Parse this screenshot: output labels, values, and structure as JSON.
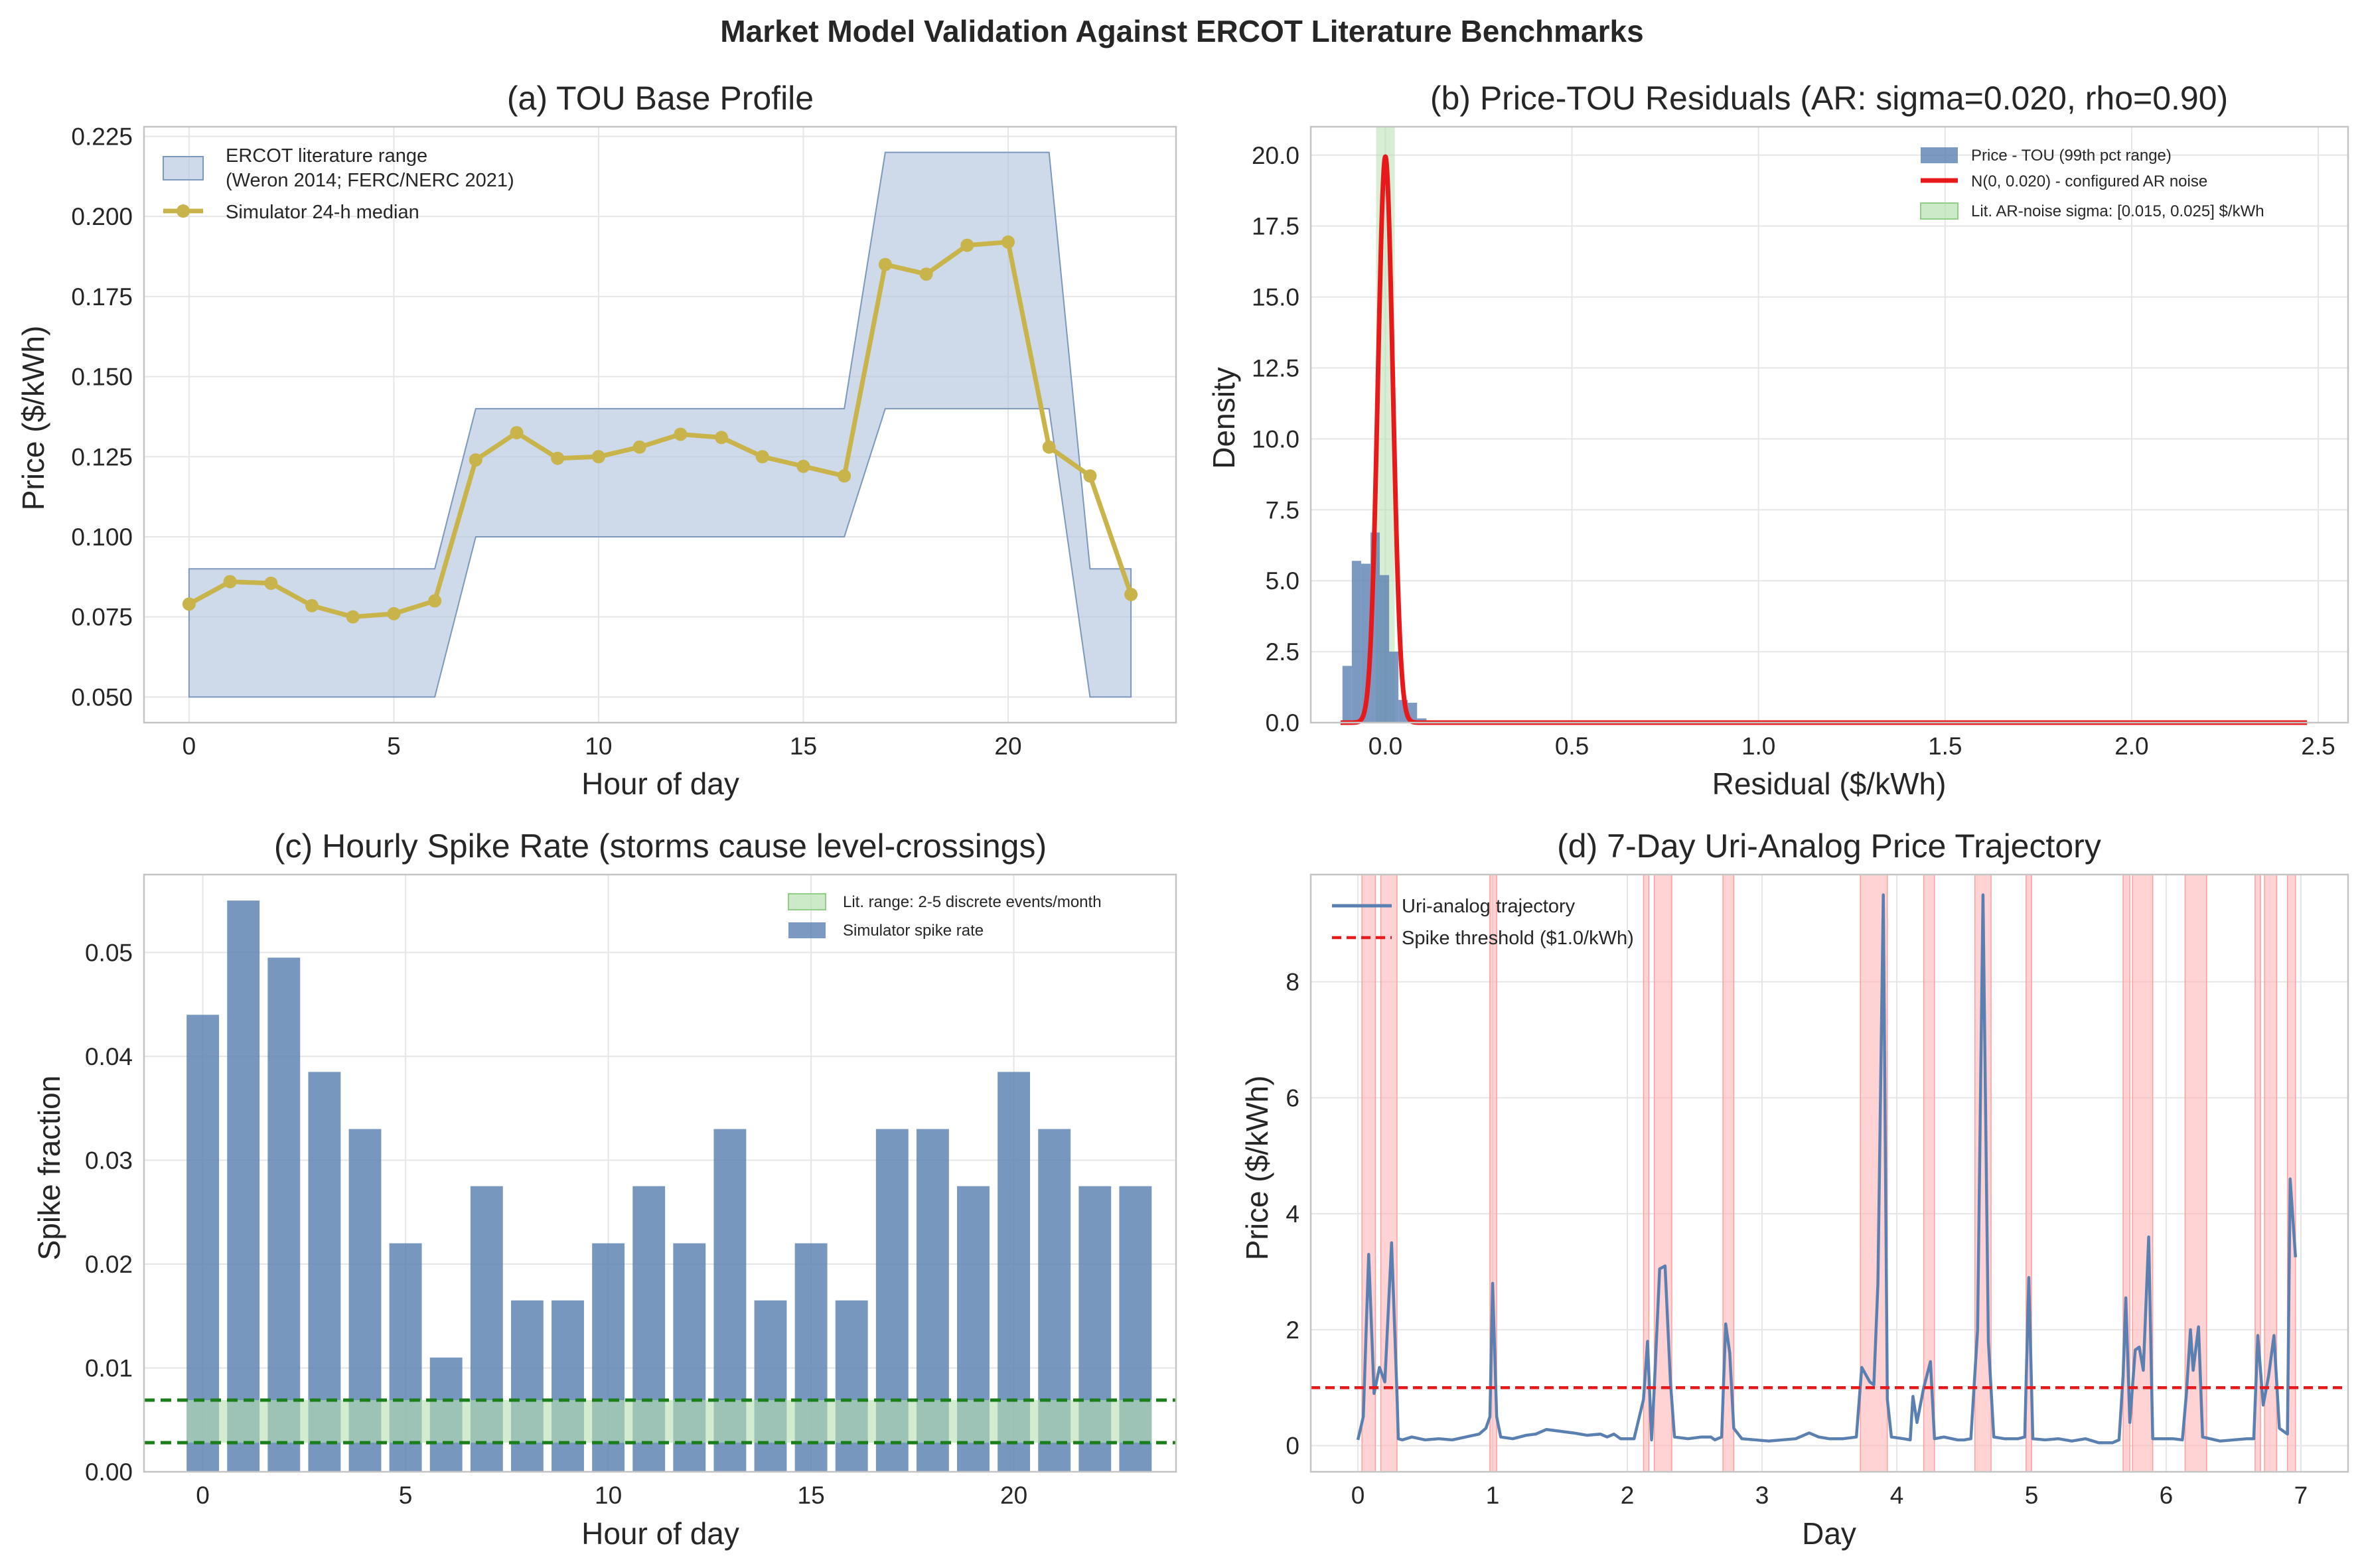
{
  "figure": {
    "suptitle": "Market Model Validation Against ERCOT Literature Benchmarks",
    "colors": {
      "blue": "#5a80b1",
      "band": "#b4c6dd",
      "gold": "#c8b44a",
      "red": "#e8191b",
      "green": "#1a7f1a",
      "lightgreen": "#b6dfb0",
      "pink": "#ffb6b6"
    }
  },
  "chart_data": [
    {
      "id": "a",
      "type": "line",
      "title": "(a) TOU Base Profile",
      "xlabel": "Hour of day",
      "ylabel": "Price ($/kWh)",
      "xlim": [
        -1.1,
        24.1
      ],
      "ylim": [
        0.042,
        0.228
      ],
      "xticks": [
        0,
        5,
        10,
        15,
        20
      ],
      "xticklabels": [
        "0",
        "5",
        "10",
        "15",
        "20"
      ],
      "yticks": [
        0.05,
        0.075,
        0.1,
        0.125,
        0.15,
        0.175,
        0.2,
        0.225
      ],
      "yticklabels": [
        "0.050",
        "0.075",
        "0.100",
        "0.125",
        "0.150",
        "0.175",
        "0.200",
        "0.225"
      ],
      "grid": true,
      "legend": "top-left",
      "band": {
        "label_line1": "ERCOT literature range",
        "label_line2": "(Weron 2014; FERC/NERC 2021)",
        "x": [
          0,
          1,
          2,
          3,
          4,
          5,
          6,
          7,
          8,
          9,
          10,
          11,
          12,
          13,
          14,
          15,
          16,
          17,
          18,
          19,
          20,
          21,
          22,
          23
        ],
        "lower": [
          0.05,
          0.05,
          0.05,
          0.05,
          0.05,
          0.05,
          0.05,
          0.1,
          0.1,
          0.1,
          0.1,
          0.1,
          0.1,
          0.1,
          0.1,
          0.1,
          0.1,
          0.14,
          0.14,
          0.14,
          0.14,
          0.14,
          0.05,
          0.05
        ],
        "upper": [
          0.09,
          0.09,
          0.09,
          0.09,
          0.09,
          0.09,
          0.09,
          0.14,
          0.14,
          0.14,
          0.14,
          0.14,
          0.14,
          0.14,
          0.14,
          0.14,
          0.14,
          0.22,
          0.22,
          0.22,
          0.22,
          0.22,
          0.09,
          0.09
        ]
      },
      "series": [
        {
          "name": "Simulator 24-h median",
          "x": [
            0,
            1,
            2,
            3,
            4,
            5,
            6,
            7,
            8,
            9,
            10,
            11,
            12,
            13,
            14,
            15,
            16,
            17,
            18,
            19,
            20,
            21,
            22,
            23
          ],
          "values": [
            0.079,
            0.086,
            0.0855,
            0.0785,
            0.075,
            0.076,
            0.08,
            0.124,
            0.1325,
            0.1245,
            0.125,
            0.128,
            0.132,
            0.131,
            0.125,
            0.122,
            0.119,
            0.185,
            0.182,
            0.191,
            0.192,
            0.128,
            0.119,
            0.082
          ]
        }
      ]
    },
    {
      "id": "b",
      "type": "histogram",
      "title": "(b) Price-TOU Residuals  (AR: sigma=0.020, rho=0.90)",
      "xlabel": "Residual ($/kWh)",
      "ylabel": "Density",
      "xlim": [
        -0.2,
        2.58
      ],
      "ylim": [
        0,
        21
      ],
      "xticks": [
        0,
        0.5,
        1,
        1.5,
        2,
        2.5
      ],
      "xticklabels": [
        "0.0",
        "0.5",
        "1.0",
        "1.5",
        "2.0",
        "2.5"
      ],
      "yticks": [
        0,
        2.5,
        5,
        7.5,
        10,
        12.5,
        15,
        17.5,
        20
      ],
      "yticklabels": [
        "0.0",
        "2.5",
        "5.0",
        "7.5",
        "10.0",
        "12.5",
        "15.0",
        "17.5",
        "20.0"
      ],
      "grid": true,
      "legend": "top-right",
      "histogram": {
        "name": "Price - TOU (99th pct range)",
        "bin_edges": [
          -0.115,
          -0.09,
          -0.065,
          -0.04,
          -0.015,
          0.01,
          0.035,
          0.06,
          0.085,
          0.11,
          0.135,
          0.16,
          0.185
        ],
        "density": [
          2.0,
          5.7,
          5.6,
          6.7,
          5.2,
          2.5,
          0.8,
          0.7,
          0.15,
          0.08,
          0.05,
          0.03
        ]
      },
      "normal_curve": {
        "name": "N(0, 0.020) - configured AR noise",
        "mu": 0,
        "sigma": 0.02,
        "x_range": [
          -0.12,
          2.47
        ]
      },
      "span": {
        "name": "Lit. AR-noise sigma: [0.015, 0.025] $/kWh",
        "lo": -0.025,
        "hi": 0.025
      }
    },
    {
      "id": "c",
      "type": "bar",
      "title": "(c) Hourly Spike Rate (storms cause level-crossings)",
      "xlabel": "Hour of day",
      "ylabel": "Spike fraction",
      "xlim": [
        -1.45,
        24.0
      ],
      "ylim": [
        0,
        0.0575
      ],
      "xticks": [
        0,
        5,
        10,
        15,
        20
      ],
      "xticklabels": [
        "0",
        "5",
        "10",
        "15",
        "20"
      ],
      "yticks": [
        0,
        0.01,
        0.02,
        0.03,
        0.04,
        0.05
      ],
      "yticklabels": [
        "0.00",
        "0.01",
        "0.02",
        "0.03",
        "0.04",
        "0.05"
      ],
      "grid": true,
      "legend": "top-right",
      "categories": [
        0,
        1,
        2,
        3,
        4,
        5,
        6,
        7,
        8,
        9,
        10,
        11,
        12,
        13,
        14,
        15,
        16,
        17,
        18,
        19,
        20,
        21,
        22,
        23
      ],
      "series": [
        {
          "name": "Simulator spike rate",
          "values": [
            0.044,
            0.055,
            0.0495,
            0.0385,
            0.033,
            0.022,
            0.011,
            0.0275,
            0.0165,
            0.0165,
            0.022,
            0.0275,
            0.022,
            0.033,
            0.0165,
            0.022,
            0.0165,
            0.033,
            0.033,
            0.0275,
            0.0385,
            0.033,
            0.0275,
            0.0275
          ]
        }
      ],
      "range_band": {
        "name": "Lit. range: 2-5 discrete events/month",
        "lo": 0.0028,
        "hi": 0.0069
      }
    },
    {
      "id": "d",
      "type": "line",
      "title": "(d) 7-Day Uri-Analog Price Trajectory",
      "xlabel": "Day",
      "ylabel": "Price ($/kWh)",
      "xlim": [
        -0.35,
        7.35
      ],
      "ylim": [
        -0.45,
        9.85
      ],
      "xticks": [
        0,
        1,
        2,
        3,
        4,
        5,
        6,
        7
      ],
      "xticklabels": [
        "0",
        "1",
        "2",
        "3",
        "4",
        "5",
        "6",
        "7"
      ],
      "yticks": [
        0,
        2,
        4,
        6,
        8
      ],
      "yticklabels": [
        "0",
        "2",
        "4",
        "6",
        "8"
      ],
      "grid": true,
      "legend": "top-left",
      "series": [
        {
          "name": "Uri-analog trajectory",
          "points": [
            [
              0,
              0.1
            ],
            [
              0.04,
              0.5
            ],
            [
              0.08,
              3.3
            ],
            [
              0.12,
              0.9
            ],
            [
              0.16,
              1.35
            ],
            [
              0.2,
              1.1
            ],
            [
              0.25,
              3.5
            ],
            [
              0.29,
              0.9
            ],
            [
              0.3,
              0.12
            ],
            [
              0.33,
              0.1
            ],
            [
              0.4,
              0.15
            ],
            [
              0.5,
              0.1
            ],
            [
              0.6,
              0.12
            ],
            [
              0.7,
              0.1
            ],
            [
              0.8,
              0.15
            ],
            [
              0.9,
              0.2
            ],
            [
              0.95,
              0.3
            ],
            [
              0.98,
              0.5
            ],
            [
              1.0,
              2.8
            ],
            [
              1.03,
              0.5
            ],
            [
              1.06,
              0.15
            ],
            [
              1.15,
              0.12
            ],
            [
              1.25,
              0.18
            ],
            [
              1.32,
              0.2
            ],
            [
              1.4,
              0.28
            ],
            [
              1.5,
              0.25
            ],
            [
              1.6,
              0.22
            ],
            [
              1.7,
              0.18
            ],
            [
              1.8,
              0.2
            ],
            [
              1.85,
              0.15
            ],
            [
              1.9,
              0.2
            ],
            [
              1.95,
              0.12
            ],
            [
              2.05,
              0.12
            ],
            [
              2.12,
              0.8
            ],
            [
              2.15,
              1.8
            ],
            [
              2.18,
              0.1
            ],
            [
              2.2,
              1.0
            ],
            [
              2.24,
              3.05
            ],
            [
              2.28,
              3.1
            ],
            [
              2.32,
              1.1
            ],
            [
              2.35,
              0.15
            ],
            [
              2.45,
              0.12
            ],
            [
              2.55,
              0.15
            ],
            [
              2.62,
              0.15
            ],
            [
              2.65,
              0.1
            ],
            [
              2.7,
              0.15
            ],
            [
              2.73,
              2.1
            ],
            [
              2.76,
              1.6
            ],
            [
              2.79,
              0.3
            ],
            [
              2.85,
              0.12
            ],
            [
              2.95,
              0.1
            ],
            [
              3.05,
              0.08
            ],
            [
              3.15,
              0.1
            ],
            [
              3.25,
              0.12
            ],
            [
              3.35,
              0.22
            ],
            [
              3.42,
              0.15
            ],
            [
              3.5,
              0.12
            ],
            [
              3.6,
              0.12
            ],
            [
              3.7,
              0.15
            ],
            [
              3.74,
              1.35
            ],
            [
              3.8,
              1.1
            ],
            [
              3.83,
              1.05
            ],
            [
              3.86,
              2.8
            ],
            [
              3.9,
              9.5
            ],
            [
              3.93,
              0.8
            ],
            [
              3.96,
              0.15
            ],
            [
              4.05,
              0.12
            ],
            [
              4.1,
              0.1
            ],
            [
              4.12,
              0.85
            ],
            [
              4.15,
              0.4
            ],
            [
              4.2,
              1.0
            ],
            [
              4.25,
              1.45
            ],
            [
              4.28,
              0.12
            ],
            [
              4.35,
              0.15
            ],
            [
              4.45,
              0.1
            ],
            [
              4.5,
              0.1
            ],
            [
              4.55,
              0.12
            ],
            [
              4.6,
              2.0
            ],
            [
              4.64,
              9.5
            ],
            [
              4.68,
              1.8
            ],
            [
              4.72,
              0.15
            ],
            [
              4.8,
              0.12
            ],
            [
              4.9,
              0.12
            ],
            [
              4.95,
              0.15
            ],
            [
              4.98,
              2.9
            ],
            [
              5.01,
              0.12
            ],
            [
              5.1,
              0.1
            ],
            [
              5.2,
              0.12
            ],
            [
              5.3,
              0.08
            ],
            [
              5.4,
              0.12
            ],
            [
              5.5,
              0.05
            ],
            [
              5.6,
              0.05
            ],
            [
              5.65,
              0.1
            ],
            [
              5.68,
              1.2
            ],
            [
              5.7,
              2.55
            ],
            [
              5.73,
              0.4
            ],
            [
              5.77,
              1.65
            ],
            [
              5.8,
              1.7
            ],
            [
              5.83,
              1.3
            ],
            [
              5.87,
              3.6
            ],
            [
              5.9,
              0.12
            ],
            [
              5.95,
              0.12
            ],
            [
              6.05,
              0.12
            ],
            [
              6.12,
              0.1
            ],
            [
              6.15,
              0.9
            ],
            [
              6.18,
              2.0
            ],
            [
              6.2,
              1.3
            ],
            [
              6.24,
              2.05
            ],
            [
              6.27,
              0.15
            ],
            [
              6.4,
              0.08
            ],
            [
              6.5,
              0.1
            ],
            [
              6.6,
              0.12
            ],
            [
              6.65,
              0.12
            ],
            [
              6.68,
              1.9
            ],
            [
              6.72,
              0.7
            ],
            [
              6.76,
              1.2
            ],
            [
              6.8,
              1.9
            ],
            [
              6.84,
              0.3
            ],
            [
              6.9,
              0.2
            ],
            [
              6.92,
              4.6
            ],
            [
              6.96,
              3.25
            ]
          ]
        },
        {
          "name": "Spike threshold ($1.0/kWh)",
          "y": 1.0
        }
      ],
      "spike_spans": [
        [
          0.03,
          0.13
        ],
        [
          0.17,
          0.29
        ],
        [
          0.98,
          1.03
        ],
        [
          2.12,
          2.16
        ],
        [
          2.2,
          2.33
        ],
        [
          2.71,
          2.79
        ],
        [
          3.73,
          3.93
        ],
        [
          4.2,
          4.28
        ],
        [
          4.58,
          4.7
        ],
        [
          4.96,
          5.0
        ],
        [
          5.68,
          5.73
        ],
        [
          5.75,
          5.9
        ],
        [
          6.14,
          6.3
        ],
        [
          6.66,
          6.7
        ],
        [
          6.73,
          6.82
        ],
        [
          6.9,
          6.96
        ]
      ]
    }
  ]
}
